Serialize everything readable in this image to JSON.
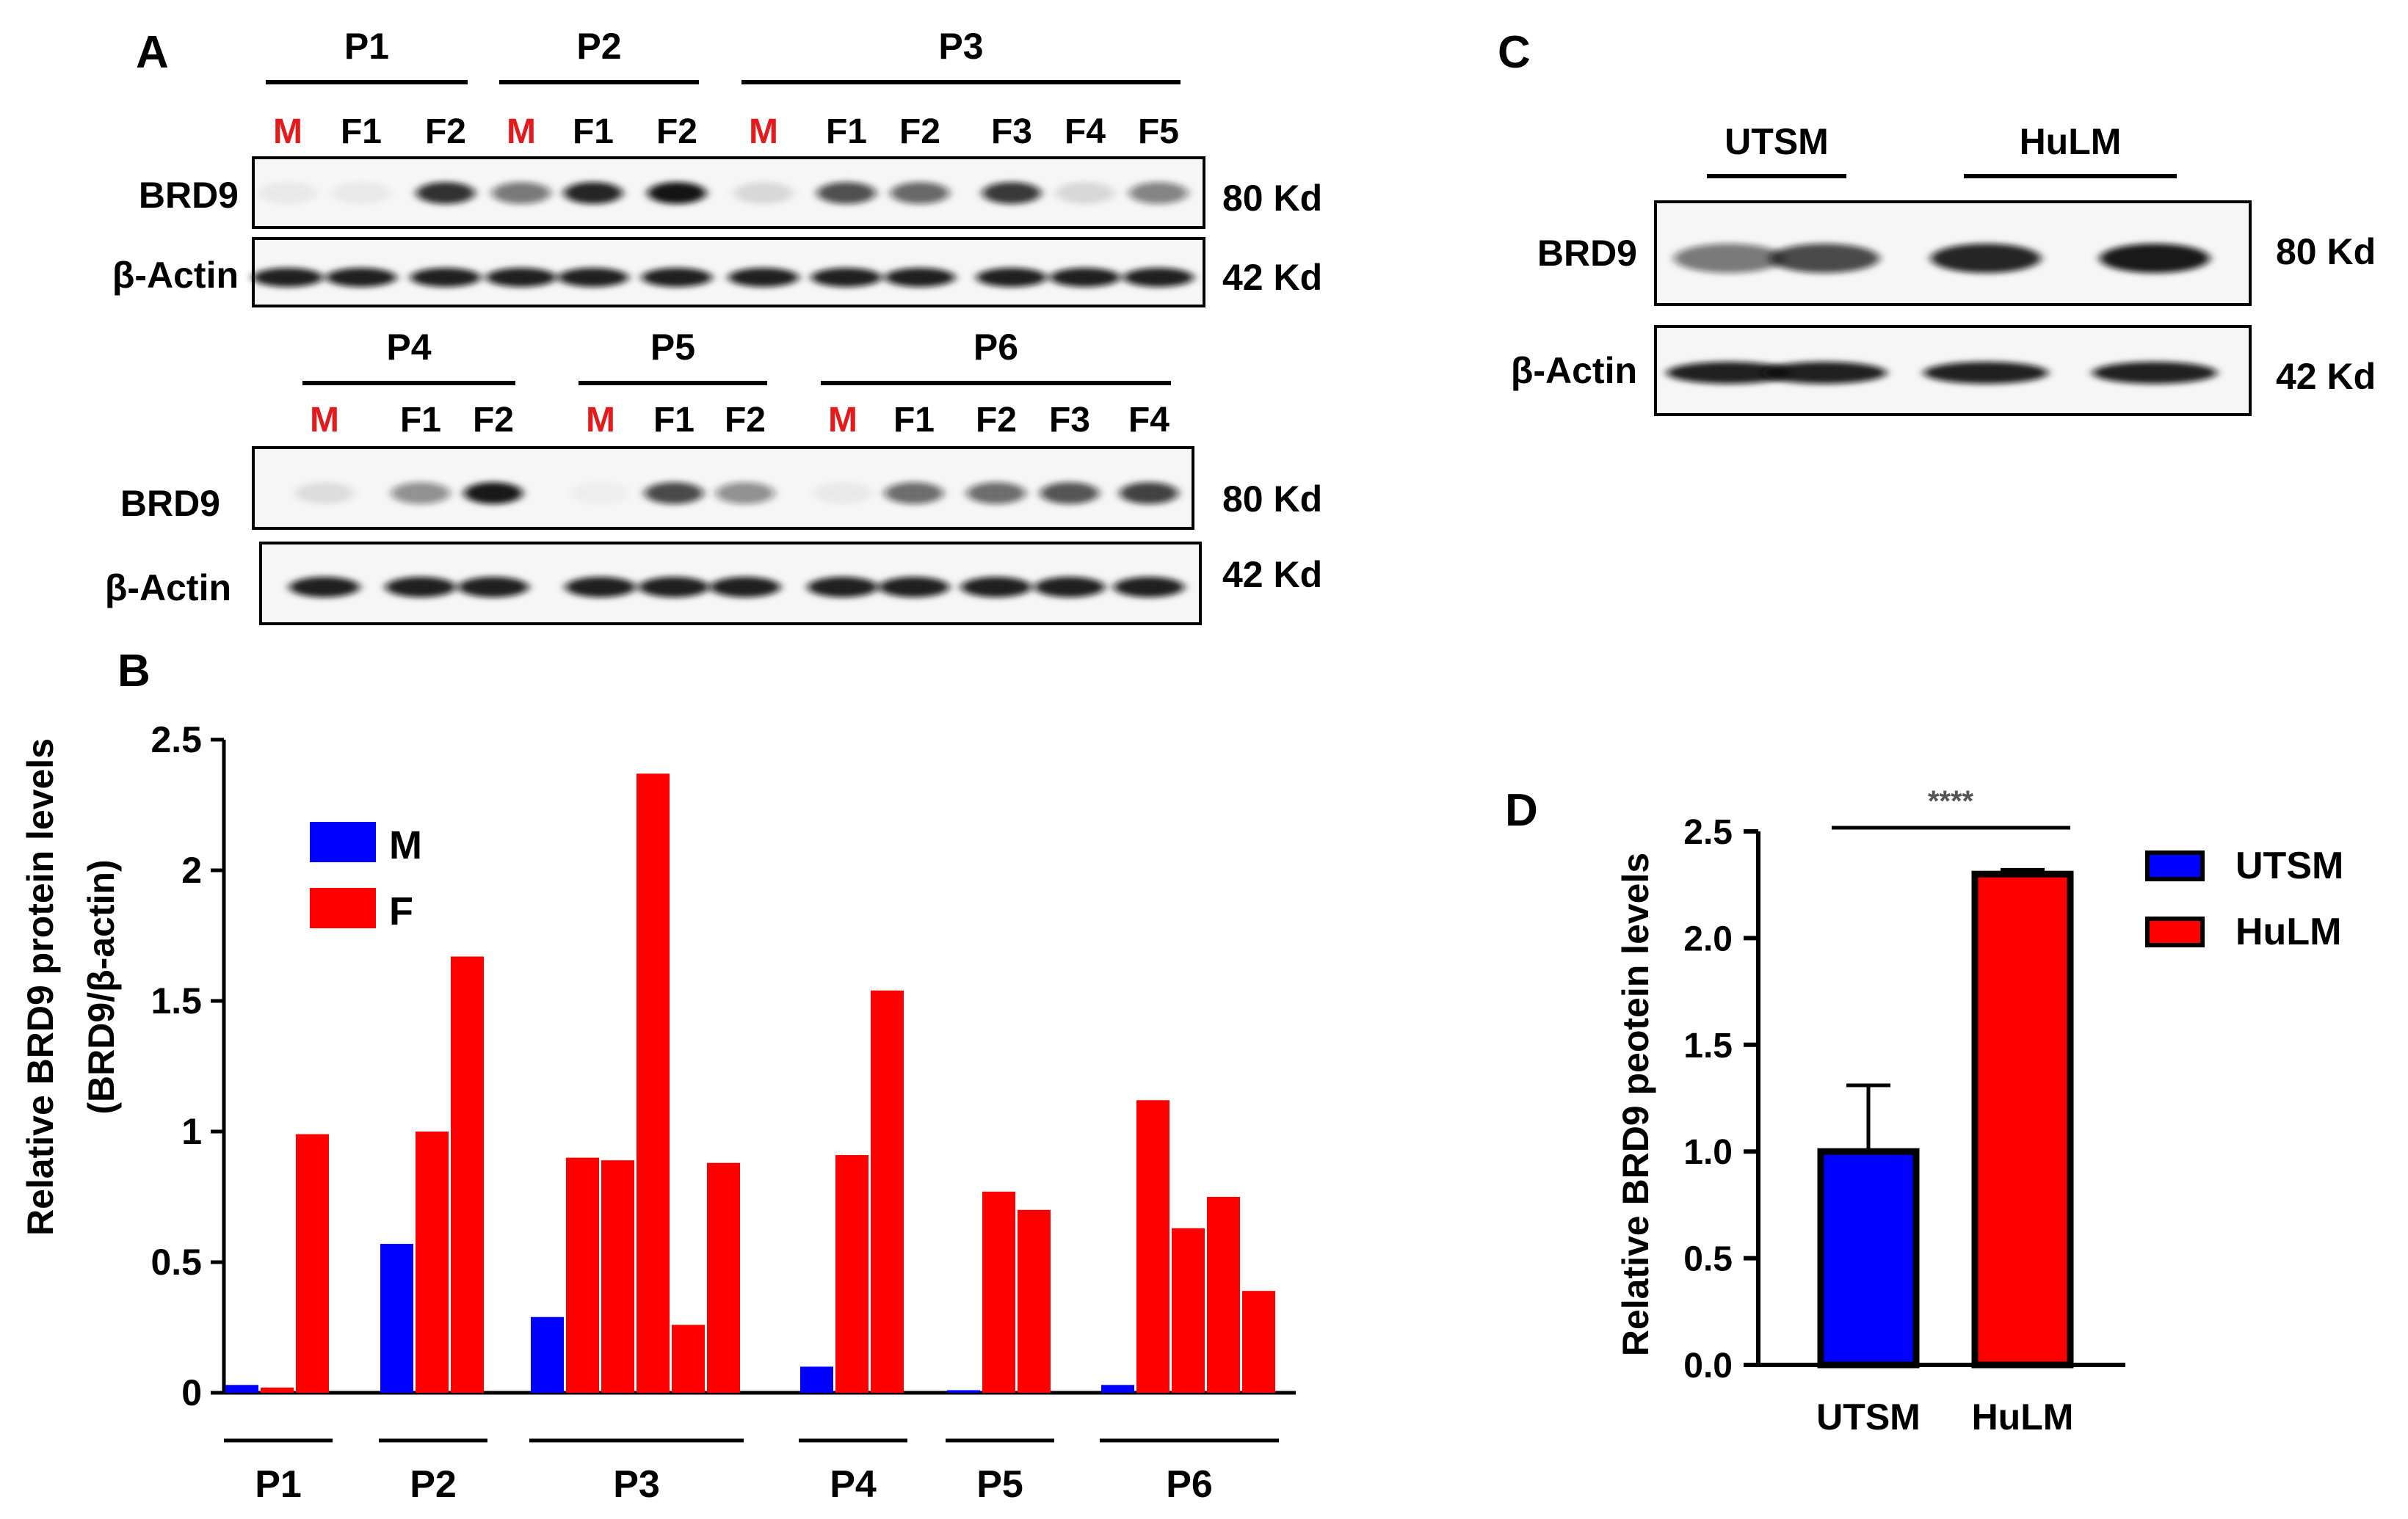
{
  "panel_labels": {
    "a": "A",
    "b": "B",
    "c": "C",
    "d": "D"
  },
  "blot_a": {
    "rows": [
      {
        "groups": [
          {
            "name": "P1",
            "lanes": [
              "M",
              "F1",
              "F2"
            ]
          },
          {
            "name": "P2",
            "lanes": [
              "M",
              "F1",
              "F2"
            ]
          },
          {
            "name": "P3",
            "lanes": [
              "M",
              "F1",
              "F2",
              "F3",
              "F4",
              "F5"
            ]
          }
        ],
        "bands": [
          {
            "label": "BRD9",
            "size": "80 Kd",
            "intensity": [
              0.05,
              0.05,
              0.85,
              0.55,
              0.9,
              0.97,
              0.12,
              0.72,
              0.62,
              0.82,
              0.12,
              0.5
            ]
          },
          {
            "label": "β-Actin",
            "size": "42 Kd",
            "intensity": [
              0.92,
              0.92,
              0.92,
              0.92,
              0.92,
              0.92,
              0.92,
              0.92,
              0.92,
              0.92,
              0.92,
              0.92
            ]
          }
        ]
      },
      {
        "groups": [
          {
            "name": "P4",
            "lanes": [
              "M",
              "F1",
              "F2"
            ]
          },
          {
            "name": "P5",
            "lanes": [
              "M",
              "F1",
              "F2"
            ]
          },
          {
            "name": "P6",
            "lanes": [
              "M",
              "F1",
              "F2",
              "F3",
              "F4"
            ]
          }
        ],
        "bands": [
          {
            "label": "BRD9",
            "size": "80 Kd",
            "intensity": [
              0.1,
              0.45,
              0.95,
              0.03,
              0.75,
              0.45,
              0.05,
              0.6,
              0.6,
              0.7,
              0.78
            ]
          },
          {
            "label": "β-Actin",
            "size": "42 Kd",
            "intensity": [
              0.92,
              0.92,
              0.92,
              0.92,
              0.92,
              0.92,
              0.92,
              0.92,
              0.92,
              0.92,
              0.92
            ]
          }
        ]
      }
    ],
    "highlight_lane": "M",
    "highlight_color": "#e41a1c"
  },
  "blot_c": {
    "groups": [
      {
        "name": "UTSM",
        "lanes": [
          "",
          ""
        ]
      },
      {
        "name": "HuLM",
        "lanes": [
          "",
          ""
        ]
      }
    ],
    "bands": [
      {
        "label": "BRD9",
        "size": "80 Kd",
        "intensity": [
          0.55,
          0.75,
          0.9,
          0.95
        ]
      },
      {
        "label": "β-Actin",
        "size": "42 Kd",
        "intensity": [
          0.92,
          0.92,
          0.92,
          0.92
        ]
      }
    ]
  },
  "chart_data": [
    {
      "type": "bar",
      "panel": "B",
      "ylabel": "Relative BRD9 protein levels",
      "ylabel2": "(BRD9/β-actin)",
      "ylim": [
        0,
        2.5
      ],
      "yticks": [
        0,
        0.5,
        1,
        1.5,
        2,
        2.5
      ],
      "ytick_labels": [
        "0",
        "0.5",
        "1",
        "1.5",
        "2",
        "2.5"
      ],
      "legend": [
        {
          "name": "M",
          "color": "#0000ff"
        },
        {
          "name": "F",
          "color": "#ff0000"
        }
      ],
      "groups": [
        {
          "name": "P1",
          "bars": [
            {
              "series": "M",
              "value": 0.03
            },
            {
              "series": "F",
              "value": 0.02
            },
            {
              "series": "F",
              "value": 0.99
            }
          ]
        },
        {
          "name": "P2",
          "bars": [
            {
              "series": "M",
              "value": 0.57
            },
            {
              "series": "F",
              "value": 1.0
            },
            {
              "series": "F",
              "value": 1.67
            }
          ]
        },
        {
          "name": "P3",
          "bars": [
            {
              "series": "M",
              "value": 0.29
            },
            {
              "series": "F",
              "value": 0.9
            },
            {
              "series": "F",
              "value": 0.89
            },
            {
              "series": "F",
              "value": 2.37
            },
            {
              "series": "F",
              "value": 0.26
            },
            {
              "series": "F",
              "value": 0.88
            }
          ]
        },
        {
          "name": "P4",
          "bars": [
            {
              "series": "M",
              "value": 0.1
            },
            {
              "series": "F",
              "value": 0.91
            },
            {
              "series": "F",
              "value": 1.54
            }
          ]
        },
        {
          "name": "P5",
          "bars": [
            {
              "series": "M",
              "value": 0.01
            },
            {
              "series": "F",
              "value": 0.77
            },
            {
              "series": "F",
              "value": 0.7
            }
          ]
        },
        {
          "name": "P6",
          "bars": [
            {
              "series": "M",
              "value": 0.03
            },
            {
              "series": "F",
              "value": 1.12
            },
            {
              "series": "F",
              "value": 0.63
            },
            {
              "series": "F",
              "value": 0.75
            },
            {
              "series": "F",
              "value": 0.39
            }
          ]
        }
      ]
    },
    {
      "type": "bar",
      "panel": "D",
      "ylabel": "Relative BRD9 peotein levels",
      "ylim": [
        0,
        2.5
      ],
      "yticks": [
        0,
        0.5,
        1,
        1.5,
        2,
        2.5
      ],
      "ytick_labels": [
        "0.0",
        "0.5",
        "1.0",
        "1.5",
        "2.0",
        "2.5"
      ],
      "categories": [
        "UTSM",
        "HuLM"
      ],
      "values": [
        1.0,
        2.3
      ],
      "errors": [
        0.31,
        0.02
      ],
      "colors": [
        "#0000ff",
        "#ff0000"
      ],
      "legend": [
        {
          "name": "UTSM",
          "color": "#0000ff"
        },
        {
          "name": "HuLM",
          "color": "#ff0000"
        }
      ],
      "significance": "****"
    }
  ]
}
